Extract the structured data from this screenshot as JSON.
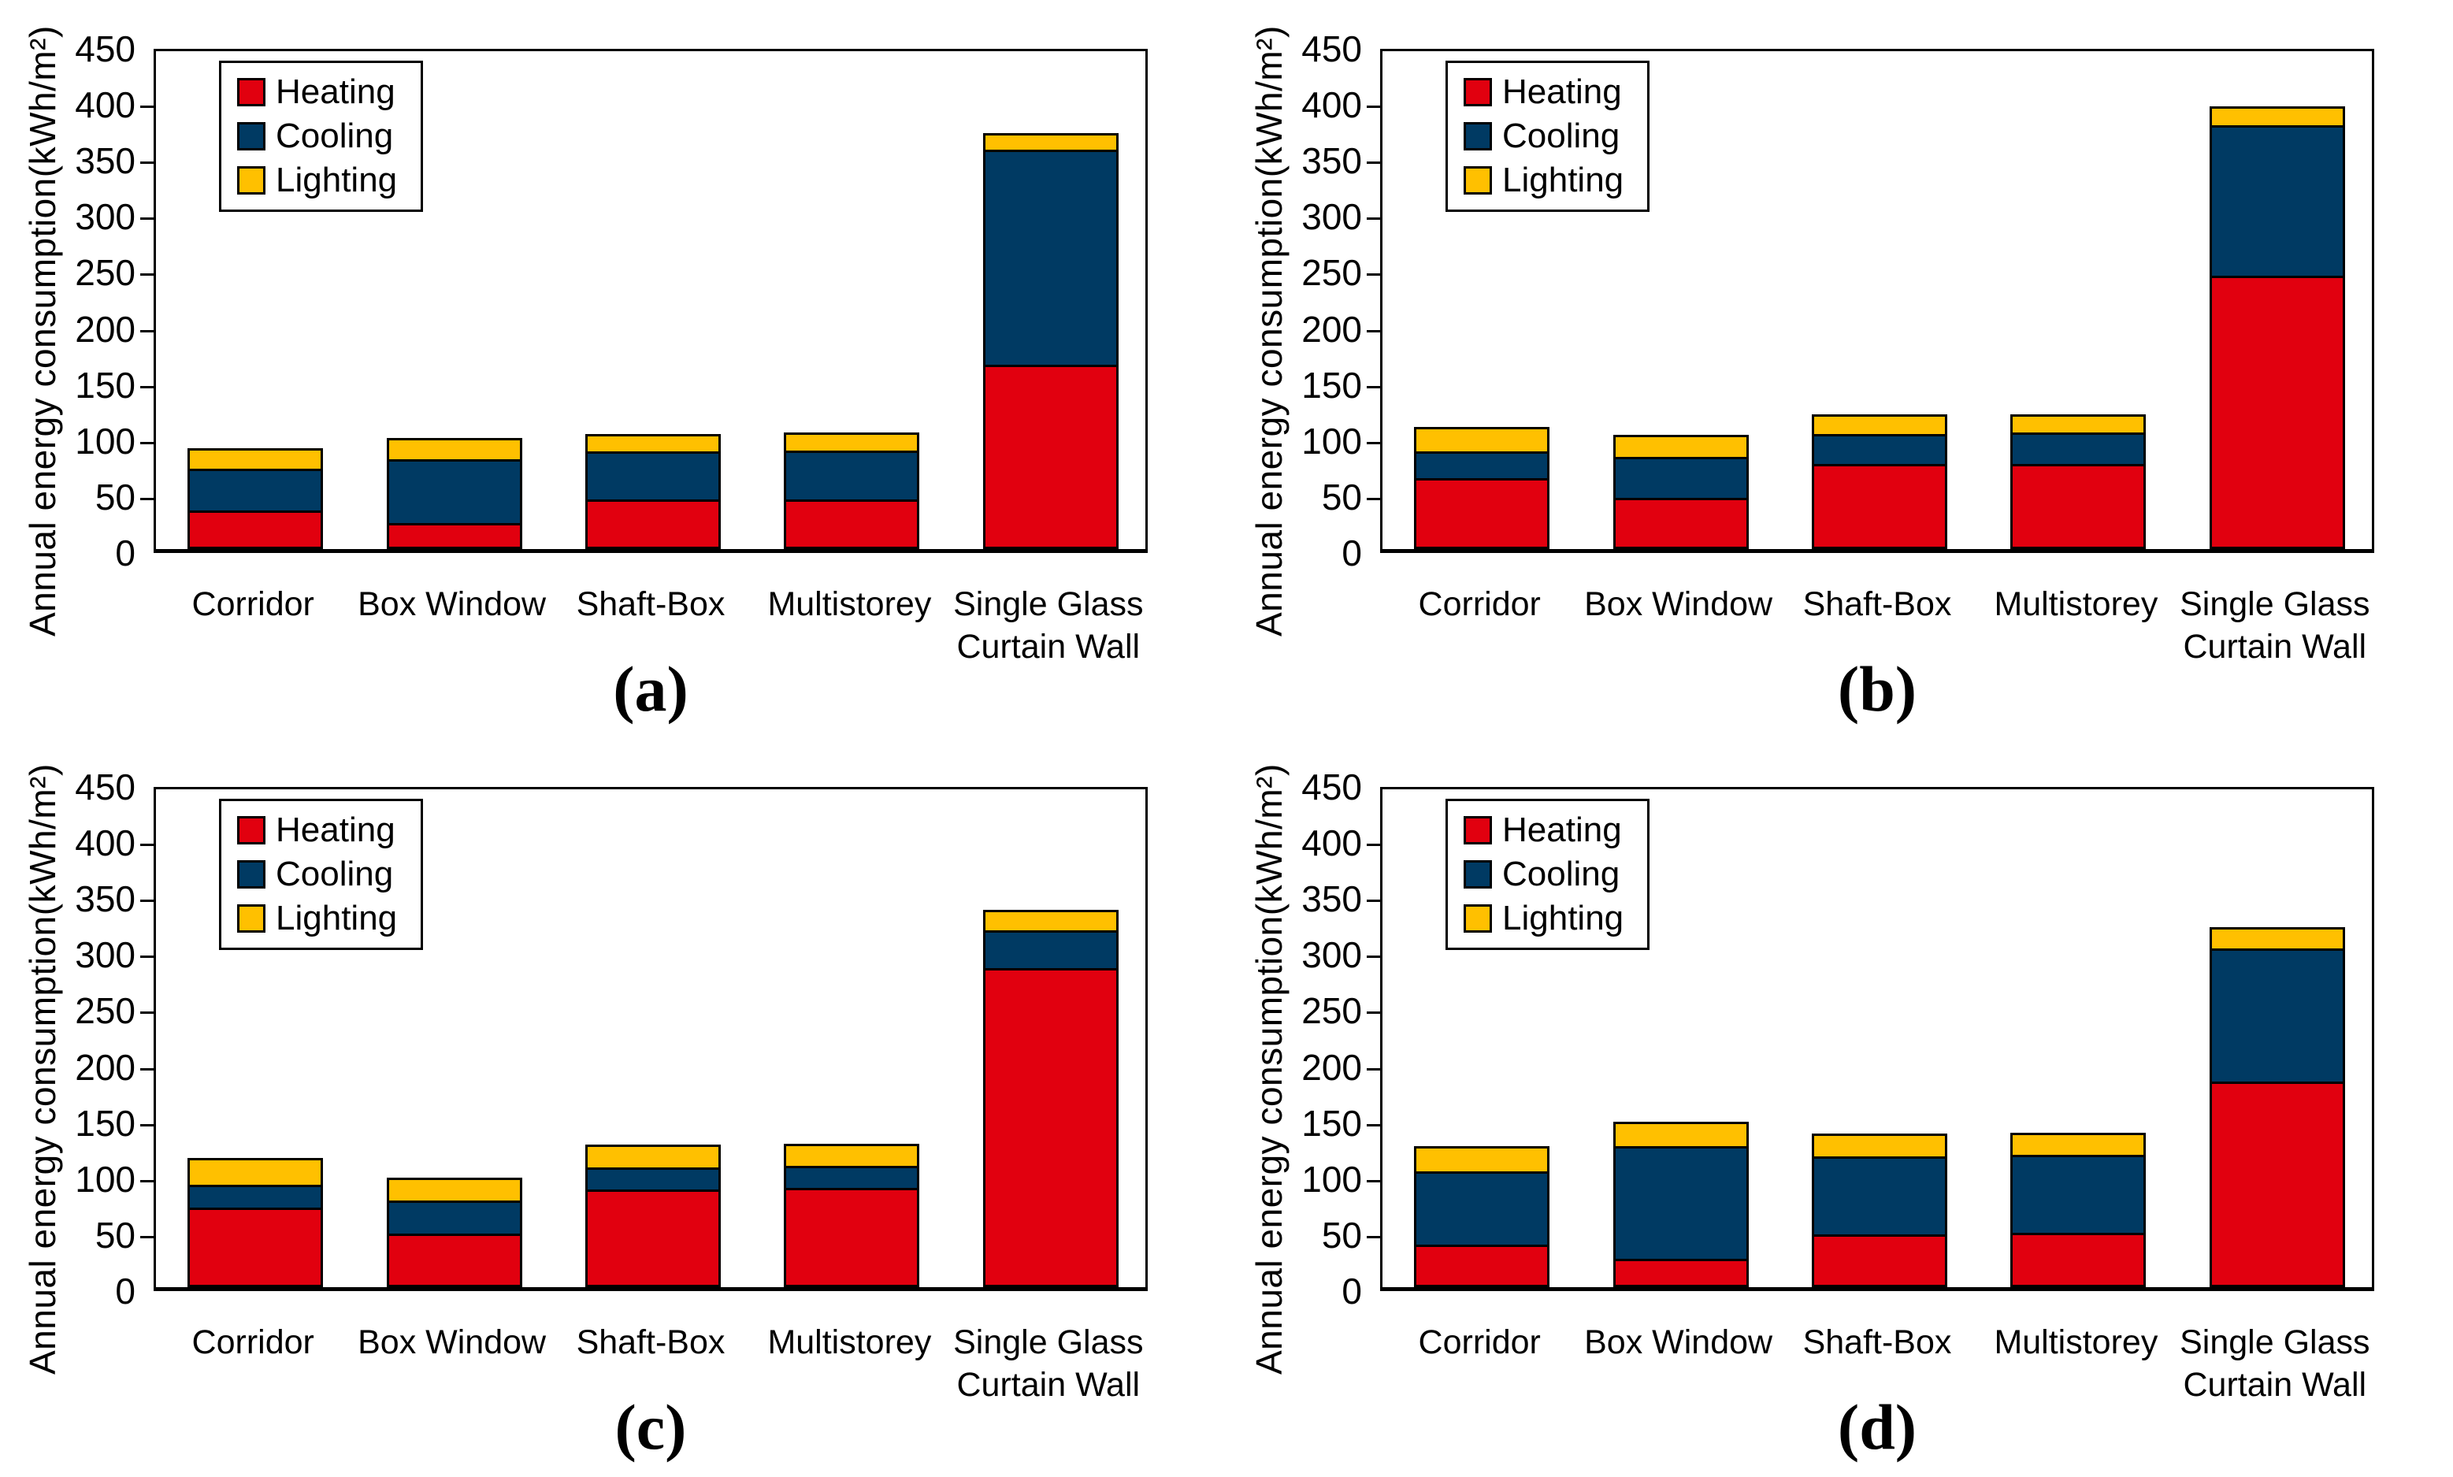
{
  "figure": {
    "background": "#FFFFFF",
    "axis_color": "#000000",
    "series_colors": {
      "heating": "#E1000F",
      "cooling": "#003A63",
      "lighting": "#FFC000"
    },
    "legend_labels": [
      "Heating",
      "Cooling",
      "Lighting"
    ]
  },
  "chart_data": [
    {
      "type": "bar",
      "stacked": true,
      "panel_label": "(a)",
      "ylabel": "Annual energy consumption(kWh/m²)",
      "xlabel": "",
      "ylim": [
        0,
        450
      ],
      "ytick_step": 50,
      "grid": false,
      "legend_position": "top-left",
      "categories": [
        "Corridor",
        "Box Window",
        "Shaft-Box",
        "Multistorey",
        "Single Glass Curtain Wall"
      ],
      "series": [
        {
          "name": "Heating",
          "color": "#E1000F",
          "values": [
            33,
            21,
            44,
            44,
            164
          ]
        },
        {
          "name": "Cooling",
          "color": "#003A63",
          "values": [
            39,
            60,
            44,
            45,
            194
          ]
        },
        {
          "name": "Lighting",
          "color": "#FFC000",
          "values": [
            18,
            18,
            15,
            15,
            13
          ]
        }
      ]
    },
    {
      "type": "bar",
      "stacked": true,
      "panel_label": "(b)",
      "ylabel": "Annual energy consumption(kWh/m²)",
      "xlabel": "",
      "ylim": [
        0,
        450
      ],
      "ytick_step": 50,
      "grid": false,
      "legend_position": "top-left",
      "categories": [
        "Corridor",
        "Box Window",
        "Shaft-Box",
        "Multistorey",
        "Single Glass Curtain Wall"
      ],
      "series": [
        {
          "name": "Heating",
          "color": "#E1000F",
          "values": [
            64,
            45,
            77,
            77,
            245
          ]
        },
        {
          "name": "Cooling",
          "color": "#003A63",
          "values": [
            24,
            38,
            27,
            28,
            135
          ]
        },
        {
          "name": "Lighting",
          "color": "#FFC000",
          "values": [
            21,
            19,
            16,
            15,
            15
          ]
        }
      ]
    },
    {
      "type": "bar",
      "stacked": true,
      "panel_label": "(c)",
      "ylabel": "Annual energy consumption(kWh/m²)",
      "xlabel": "",
      "ylim": [
        0,
        450
      ],
      "ytick_step": 50,
      "grid": false,
      "legend_position": "top-left",
      "categories": [
        "Corridor",
        "Box Window",
        "Shaft-Box",
        "Multistorey",
        "Single Glass Curtain Wall"
      ],
      "series": [
        {
          "name": "Heating",
          "color": "#E1000F",
          "values": [
            72,
            48,
            89,
            90,
            288
          ]
        },
        {
          "name": "Cooling",
          "color": "#003A63",
          "values": [
            20,
            30,
            19,
            19,
            32
          ]
        },
        {
          "name": "Lighting",
          "color": "#FFC000",
          "values": [
            23,
            20,
            19,
            19,
            17
          ]
        }
      ]
    },
    {
      "type": "bar",
      "stacked": true,
      "panel_label": "(d)",
      "ylabel": "Annual energy consumption(kWh/m²)",
      "xlabel": "",
      "ylim": [
        0,
        450
      ],
      "ytick_step": 50,
      "grid": false,
      "legend_position": "top-left",
      "categories": [
        "Corridor",
        "Box Window",
        "Shaft-Box",
        "Multistorey",
        "Single Glass Curtain Wall"
      ],
      "series": [
        {
          "name": "Heating",
          "color": "#E1000F",
          "values": [
            36,
            22,
            46,
            47,
            184
          ]
        },
        {
          "name": "Cooling",
          "color": "#003A63",
          "values": [
            68,
            105,
            72,
            72,
            120
          ]
        },
        {
          "name": "Lighting",
          "color": "#FFC000",
          "values": [
            22,
            21,
            19,
            19,
            17
          ]
        }
      ]
    }
  ]
}
